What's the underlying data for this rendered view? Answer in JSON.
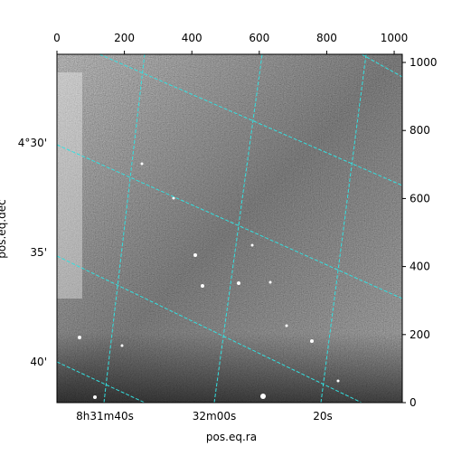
{
  "chart_data": {
    "type": "image",
    "xlim": [
      0,
      1024
    ],
    "ylim": [
      0,
      1024
    ],
    "xticks": [
      0,
      200,
      400,
      600,
      800,
      1000
    ],
    "yticks": [
      0,
      200,
      400,
      600,
      800,
      1000
    ],
    "ra_tick_labels": [
      "8h31m40s",
      "32m00s",
      "20s"
    ],
    "dec_tick_labels": [
      "4°30'",
      "35'",
      "40'"
    ],
    "xlabel": "pos.eq.ra",
    "ylabel": "pos.eq.dec",
    "grid_color": "#33e0e0"
  }
}
